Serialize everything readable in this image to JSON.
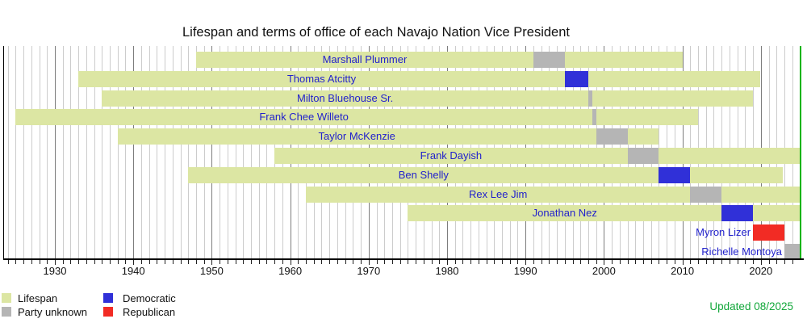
{
  "title": "Lifespan and terms of office of each Navajo Nation Vice President",
  "updated_label": "Updated 08/2025",
  "legend": {
    "lifespan_label": "Lifespan",
    "unknown_label": "Party unknown",
    "democratic_label": "Democratic",
    "republican_label": "Republican"
  },
  "colors": {
    "lifespan": "#dce6a3",
    "unknown": "#b5b5b5",
    "democratic": "#3030d8",
    "republican": "#f22b24",
    "name_text": "#2222cc",
    "now_line": "#00b400",
    "updated_text": "#12a73a",
    "grid_minor": "#cccccc",
    "grid_major": "#7d7d7d"
  },
  "chart_data": {
    "type": "timeline",
    "title": "Lifespan and terms of office of each Navajo Nation Vice President",
    "x_axis": {
      "tick_years_labeled": [
        1930,
        1940,
        1950,
        1960,
        1970,
        1980,
        1990,
        2000,
        2010,
        2020
      ],
      "minor_tick_every_years": 1,
      "range_shown": [
        1923.5,
        2025.9
      ],
      "now_marker_year": 2025,
      "grid": "vertical yearly lines, darker each decade"
    },
    "legend_position": "bottom-left",
    "people": [
      {
        "name": "Marshall Plummer",
        "birth": 1948,
        "death": 2010,
        "term_start": 1991,
        "term_end": 1995,
        "party": "unknown"
      },
      {
        "name": "Thomas Atcitty",
        "birth": 1933,
        "death": 2019.9,
        "term_start": 1995,
        "term_end": 1998,
        "party": "democratic"
      },
      {
        "name": "Milton Bluehouse Sr.",
        "birth": 1936,
        "death": 2019,
        "term_start": 1998,
        "term_end": 1998.5,
        "party": "unknown"
      },
      {
        "name": "Frank Chee Willeto",
        "birth": 1925,
        "death": 2012,
        "term_start": 1998.5,
        "term_end": 1999,
        "party": "unknown"
      },
      {
        "name": "Taylor McKenzie",
        "birth": 1938,
        "death": 2007,
        "term_start": 1999,
        "term_end": 2003,
        "party": "unknown"
      },
      {
        "name": "Frank Dayish",
        "birth": 1958,
        "death": null,
        "term_start": 2003,
        "term_end": 2007,
        "party": "unknown"
      },
      {
        "name": "Ben Shelly",
        "birth": 1947,
        "death": 2022.8,
        "term_start": 2007,
        "term_end": 2011,
        "party": "democratic"
      },
      {
        "name": "Rex Lee Jim",
        "birth": 1962,
        "death": null,
        "term_start": 2011,
        "term_end": 2015,
        "party": "unknown"
      },
      {
        "name": "Jonathan Nez",
        "birth": 1975,
        "death": null,
        "term_start": 2015,
        "term_end": 2019,
        "party": "democratic"
      },
      {
        "name": "Myron Lizer",
        "birth": null,
        "death": null,
        "term_start": 2019,
        "term_end": 2023,
        "party": "republican"
      },
      {
        "name": "Richelle Montoya",
        "birth": null,
        "death": null,
        "term_start": 2023,
        "term_end": 2025,
        "party": "unknown"
      }
    ]
  }
}
